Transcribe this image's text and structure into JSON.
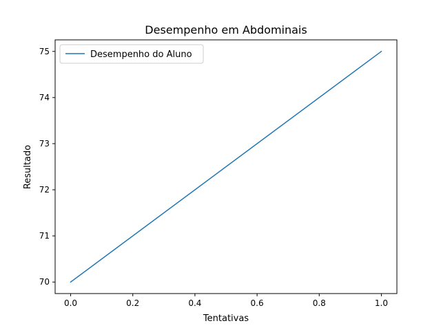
{
  "chart_data": {
    "type": "line",
    "title": "Desempenho em Abdominais",
    "xlabel": "Tentativas",
    "ylabel": "Resultado",
    "xlim": [
      -0.05,
      1.05
    ],
    "ylim": [
      69.75,
      75.25
    ],
    "xticks": [
      0.0,
      0.2,
      0.4,
      0.6,
      0.8,
      1.0
    ],
    "xtick_labels": [
      "0.0",
      "0.2",
      "0.4",
      "0.6",
      "0.8",
      "1.0"
    ],
    "yticks": [
      70,
      71,
      72,
      73,
      74,
      75
    ],
    "ytick_labels": [
      "70",
      "71",
      "72",
      "73",
      "74",
      "75"
    ],
    "grid": false,
    "legend_position": "top-left",
    "series": [
      {
        "name": "Desempenho do Aluno",
        "color": "#1f77b4",
        "x": [
          0,
          1
        ],
        "y": [
          70,
          75
        ]
      }
    ]
  }
}
